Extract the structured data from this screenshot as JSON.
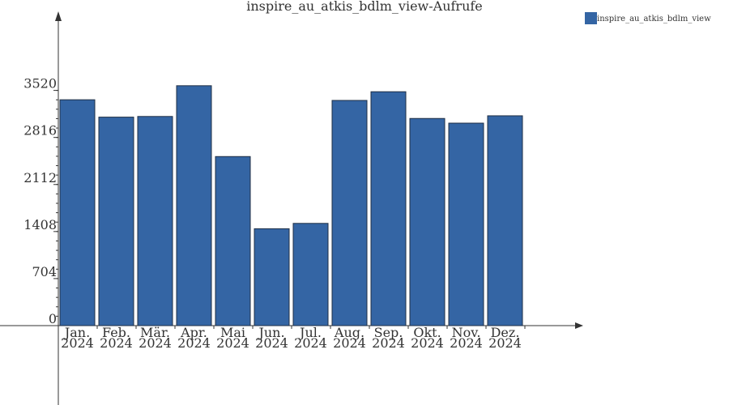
{
  "chart_data": {
    "type": "bar",
    "title": "inspire_au_atkis_bdlm_view-Aufrufe",
    "xlabel": "",
    "ylabel": "",
    "categories": [
      [
        "Jan.",
        "2024"
      ],
      [
        "Feb.",
        "2024"
      ],
      [
        "Mär.",
        "2024"
      ],
      [
        "Apr.",
        "2024"
      ],
      [
        "Mai",
        "2024"
      ],
      [
        "Jun.",
        "2024"
      ],
      [
        "Jul.",
        "2024"
      ],
      [
        "Aug.",
        "2024"
      ],
      [
        "Sep.",
        "2024"
      ],
      [
        "Okt.",
        "2024"
      ],
      [
        "Nov.",
        "2024"
      ],
      [
        "Dez.",
        "2024"
      ]
    ],
    "series": [
      {
        "name": "inspire_au_atkis_bdlm_view",
        "color": "#3465a4",
        "values": [
          3380,
          3120,
          3130,
          3590,
          2530,
          1450,
          1530,
          3370,
          3500,
          3100,
          3030,
          3140
        ]
      }
    ],
    "y_ticks": [
      0,
      704,
      1408,
      2112,
      2816,
      3520
    ],
    "ylim": [
      0,
      4800
    ],
    "grid": false,
    "legend_position": "top-right"
  }
}
